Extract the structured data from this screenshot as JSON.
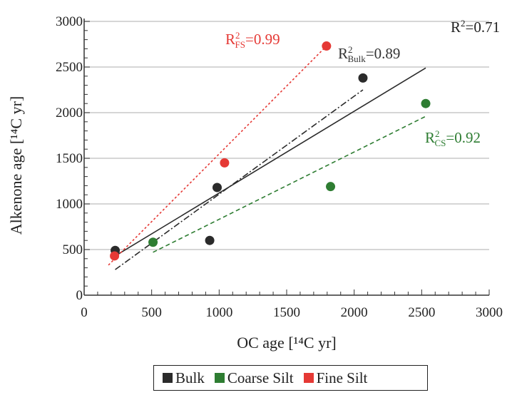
{
  "chart_data": {
    "type": "scatter",
    "xlabel": "OC age [¹⁴C yr]",
    "ylabel": "Alkenone age [¹⁴C yr]",
    "xlim": [
      0,
      3000
    ],
    "ylim": [
      0,
      3000
    ],
    "xticks": [
      "0",
      "500",
      "1000",
      "1500",
      "2000",
      "2500",
      "3000"
    ],
    "yticks": [
      "0",
      "500",
      "1000",
      "1500",
      "2000",
      "2500",
      "3000"
    ],
    "grid": "horizontal",
    "legend_position": "bottom",
    "series": [
      {
        "name": "Bulk",
        "color": "#2b2b2b",
        "points": [
          [
            230,
            490
          ],
          [
            985,
            1180
          ],
          [
            930,
            600
          ],
          [
            2065,
            2380
          ]
        ],
        "fit_line": [
          [
            230,
            280
          ],
          [
            2065,
            2250
          ]
        ],
        "fit_style": "dash-dot",
        "r2_label": {
          "base": "R",
          "sup": "2",
          "sub": "Bulk",
          "value": "=0.89"
        }
      },
      {
        "name": "Coarse Silt",
        "color": "#2e7d32",
        "points": [
          [
            510,
            580
          ],
          [
            1825,
            1190
          ],
          [
            2530,
            2100
          ]
        ],
        "fit_line": [
          [
            510,
            470
          ],
          [
            2530,
            1960
          ]
        ],
        "fit_style": "dashed",
        "r2_label": {
          "base": "R",
          "sup": "2",
          "sub": "CS",
          "value": "=0.92"
        }
      },
      {
        "name": "Fine Silt",
        "color": "#e53935",
        "points": [
          [
            225,
            430
          ],
          [
            1040,
            1450
          ],
          [
            1795,
            2730
          ]
        ],
        "fit_line": [
          [
            180,
            330
          ],
          [
            1795,
            2730
          ]
        ],
        "fit_style": "dotted",
        "r2_label": {
          "base": "R",
          "sup": "2",
          "sub": "FS",
          "value": "=0.99"
        }
      }
    ],
    "overall_fit": {
      "line": [
        [
          230,
          430
        ],
        [
          2530,
          2490
        ]
      ],
      "color": "#2b2b2b",
      "r2_label": {
        "base": "R",
        "sup": "2",
        "value": "=0.71"
      }
    }
  }
}
